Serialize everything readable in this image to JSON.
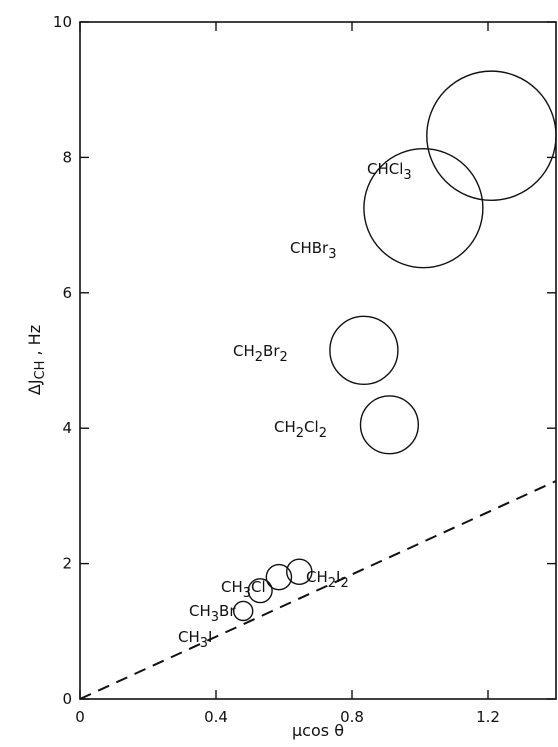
{
  "chart_data": {
    "type": "scatter",
    "title": "",
    "xlabel": "μcos θ",
    "ylabel": "ΔJ",
    "ylabel_sub": "CH",
    "ylabel_unit": " , Hz",
    "xlim": [
      0,
      1.4
    ],
    "ylim": [
      0,
      10
    ],
    "x_ticks": [
      0,
      0.4,
      0.8,
      1.2
    ],
    "x_tick_labels": [
      "0",
      "0.4",
      "0.8",
      "1.2"
    ],
    "y_ticks": [
      0,
      2,
      4,
      6,
      8,
      10
    ],
    "y_tick_labels": [
      "0",
      "2",
      "4",
      "6",
      "8",
      "10"
    ],
    "grid": false,
    "points": [
      {
        "x": 0.48,
        "y": 1.3,
        "r": 0.028,
        "label": "CH",
        "sub": "3",
        "tail": "I"
      },
      {
        "x": 0.53,
        "y": 1.6,
        "r": 0.035,
        "label": "CH",
        "sub": "3",
        "tail": "Br"
      },
      {
        "x": 0.585,
        "y": 1.8,
        "r": 0.037,
        "label": "CH",
        "sub": "3",
        "tail": "Cl"
      },
      {
        "x": 0.645,
        "y": 1.88,
        "r": 0.037,
        "label": "CH",
        "sub": "2",
        "tail": "I",
        "sub2": "2"
      },
      {
        "x": 0.91,
        "y": 4.05,
        "r": 0.085,
        "label": "CH",
        "sub": "2",
        "tail": "Cl",
        "sub2": "2"
      },
      {
        "x": 0.835,
        "y": 5.15,
        "r": 0.1,
        "label": "CH",
        "sub": "2",
        "tail": "Br",
        "sub2": "2"
      },
      {
        "x": 1.01,
        "y": 7.25,
        "r": 0.175,
        "label": "CHBr",
        "sub": "3"
      },
      {
        "x": 1.21,
        "y": 8.32,
        "r": 0.19,
        "label": "CHCl",
        "sub": "3"
      }
    ],
    "reference_line": {
      "style": "dashed",
      "x": [
        0,
        1.4
      ],
      "y": [
        0,
        3.22
      ]
    }
  }
}
